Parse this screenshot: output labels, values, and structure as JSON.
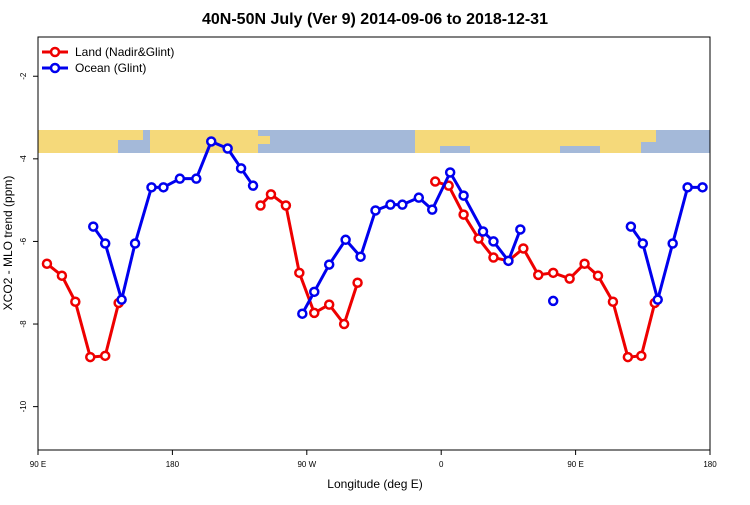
{
  "chart_data": {
    "type": "line",
    "title": "40N-50N July (Ver 9)   2014-09-06 to 2018-12-31",
    "x_label": "Longitude (deg E)",
    "y_label": "XCO2 - MLO trend (ppm)",
    "xlim": [
      90,
      540
    ],
    "xticks": [
      {
        "value": 90,
        "label": "90 E"
      },
      180,
      {
        "value": 270,
        "label": "90 W"
      },
      {
        "value": 360,
        "label": "0"
      },
      {
        "value": 450,
        "label": "90 E"
      },
      {
        "value": 540,
        "label": "180"
      }
    ],
    "ylim": [
      -11.05,
      -1.05
    ],
    "yticks": [
      -2,
      -4,
      -6,
      -8,
      -10
    ],
    "legend": "top-left",
    "series": [
      {
        "name": "Land (Nadir&Glint)",
        "color": "#ee0000",
        "x": [
          96,
          106,
          115,
          125,
          135,
          144,
          null,
          239,
          246,
          256,
          265,
          275,
          285,
          295,
          304,
          null,
          356,
          365,
          375,
          385,
          395,
          405,
          415,
          425,
          435,
          446,
          456,
          465,
          475,
          485,
          494,
          503
        ],
        "values": [
          -6.54,
          -6.83,
          -7.46,
          -8.8,
          -8.77,
          -7.49,
          null,
          -5.13,
          -4.86,
          -5.13,
          -6.76,
          -7.73,
          -7.53,
          -8.0,
          -7.0,
          null,
          -4.55,
          -4.65,
          -5.35,
          -5.93,
          -6.39,
          -6.47,
          -6.17,
          -6.81,
          -6.76,
          -6.9,
          -6.54,
          -6.83,
          -7.46,
          -8.8,
          -8.77,
          -7.49
        ]
      },
      {
        "name": "Ocean (Glint)",
        "color": "#0000ee",
        "x": [
          127,
          135,
          146,
          155,
          166,
          174,
          185,
          196,
          206,
          217,
          226,
          234,
          null,
          267,
          275,
          285,
          296,
          306,
          316,
          326,
          334,
          345,
          354,
          366,
          375,
          388,
          395,
          405,
          413,
          null,
          435,
          null,
          487,
          495,
          505,
          515,
          525,
          535
        ],
        "values": [
          -5.64,
          -6.05,
          -7.41,
          -6.05,
          -4.69,
          -4.69,
          -4.48,
          -4.48,
          -3.58,
          -3.75,
          -4.23,
          -4.65,
          null,
          -7.75,
          -7.22,
          -6.56,
          -5.96,
          -6.37,
          -5.25,
          -5.11,
          -5.11,
          -4.94,
          -5.23,
          -4.33,
          -4.89,
          -5.76,
          -6.0,
          -6.47,
          -5.71,
          null,
          -7.44,
          null,
          -5.64,
          -6.05,
          -7.41,
          -6.05,
          -4.69,
          -4.69
        ]
      }
    ]
  }
}
